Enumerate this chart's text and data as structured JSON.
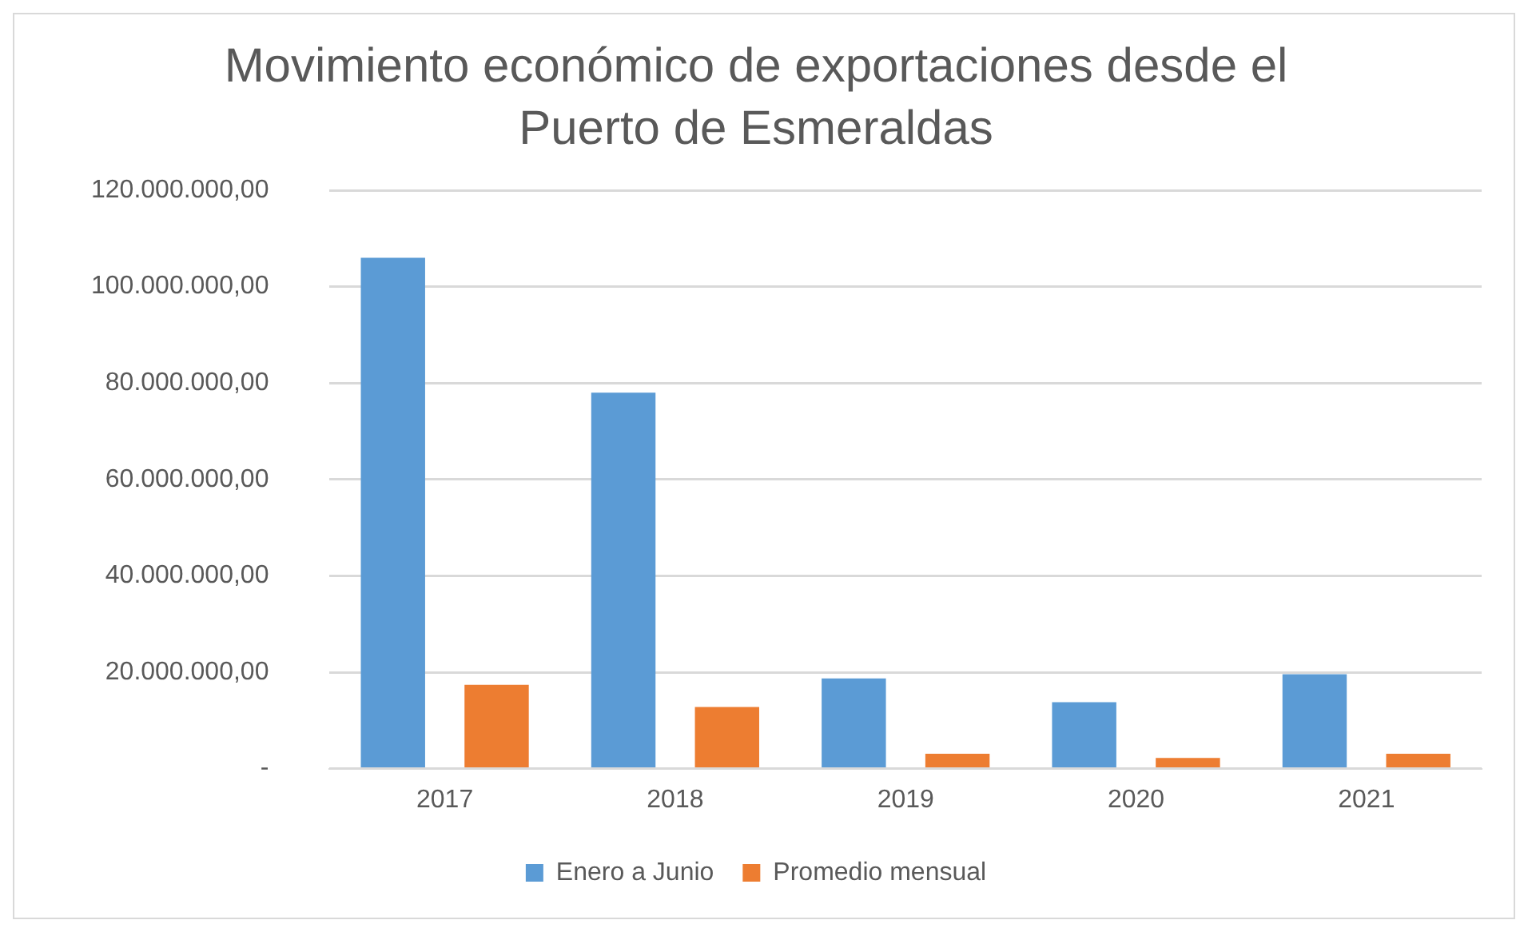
{
  "chart_data": {
    "type": "bar",
    "title": "Movimiento económico de exportaciones desde el Puerto de Esmeraldas",
    "categories": [
      "2017",
      "2018",
      "2019",
      "2020",
      "2021"
    ],
    "series": [
      {
        "name": "Enero a Junio",
        "color": "#5b9bd5",
        "values": [
          106000000,
          78000000,
          18700000,
          13800000,
          19600000
        ]
      },
      {
        "name": "Promedio mensual",
        "color": "#ed7d31",
        "values": [
          17400000,
          12800000,
          3100000,
          2200000,
          3100000
        ]
      }
    ],
    "ylim": [
      0,
      120000000
    ],
    "yticks": [
      {
        "value": 0,
        "label": "-"
      },
      {
        "value": 20000000,
        "label": "20.000.000,00"
      },
      {
        "value": 40000000,
        "label": "40.000.000,00"
      },
      {
        "value": 60000000,
        "label": "60.000.000,00"
      },
      {
        "value": 80000000,
        "label": "80.000.000,00"
      },
      {
        "value": 100000000,
        "label": "100.000.000,00"
      },
      {
        "value": 120000000,
        "label": "120.000.000,00"
      }
    ],
    "grid": "y",
    "legend": "bottom"
  }
}
